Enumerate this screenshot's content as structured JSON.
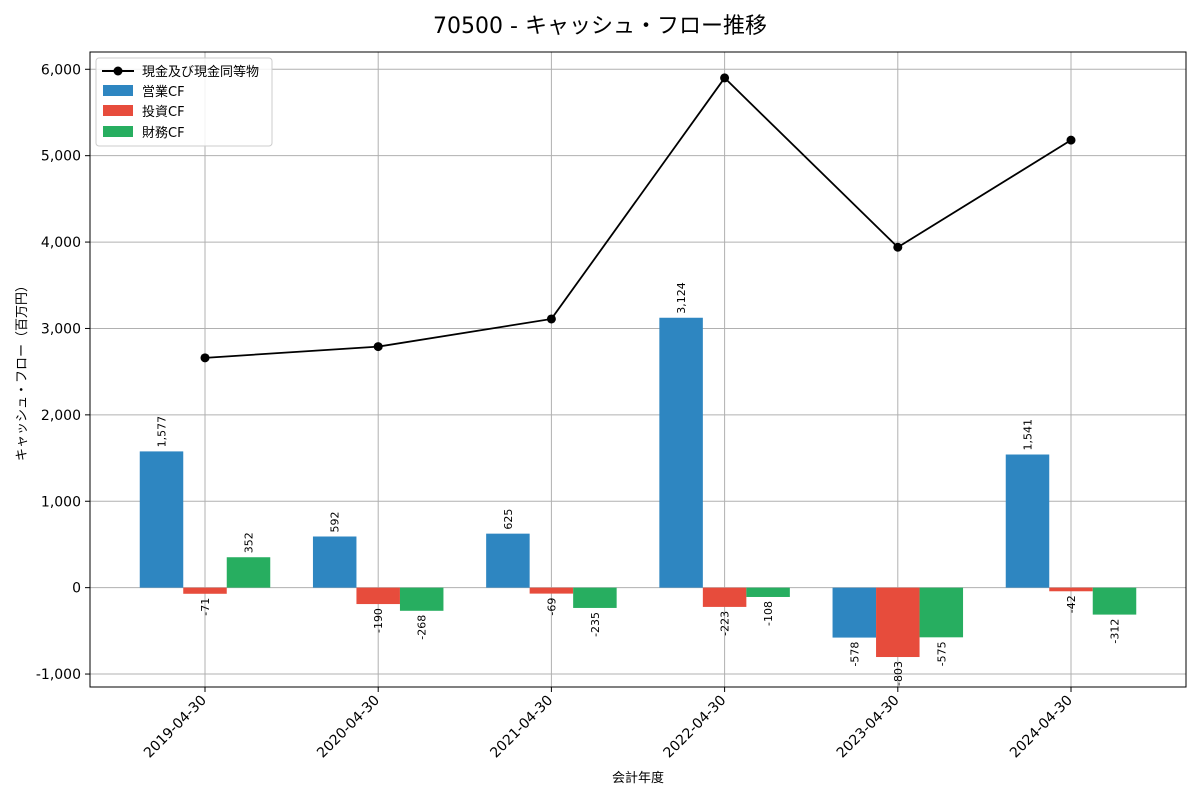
{
  "chart_data": {
    "type": "bar",
    "title": "70500 - キャッシュ・フロー推移",
    "xlabel": "会計年度",
    "ylabel": "キャッシュ・フロー（百万円）",
    "categories": [
      "2019-04-30",
      "2020-04-30",
      "2021-04-30",
      "2022-04-30",
      "2023-04-30",
      "2024-04-30"
    ],
    "ylim": [
      -1150,
      6200
    ],
    "yticks": [
      -1000,
      0,
      1000,
      2000,
      3000,
      4000,
      5000,
      6000
    ],
    "ytick_labels": [
      "-1,000",
      "0",
      "1,000",
      "2,000",
      "3,000",
      "4,000",
      "5,000",
      "6,000"
    ],
    "grid": true,
    "legend_position": "top-left",
    "series": [
      {
        "name": "営業CF",
        "kind": "bar",
        "color": "#2e86c1",
        "values": [
          1577,
          592,
          625,
          3124,
          -578,
          1541
        ],
        "labels": [
          "1,577",
          "592",
          "625",
          "3,124",
          "-578",
          "1,541"
        ]
      },
      {
        "name": "投資CF",
        "kind": "bar",
        "color": "#e74c3c",
        "values": [
          -71,
          -190,
          -69,
          -223,
          -803,
          -42
        ],
        "labels": [
          "-71",
          "-190",
          "-69",
          "-223",
          "-803",
          "-42"
        ]
      },
      {
        "name": "財務CF",
        "kind": "bar",
        "color": "#27ae60",
        "values": [
          352,
          -268,
          -235,
          -108,
          -575,
          -312
        ],
        "labels": [
          "352",
          "-268",
          "-235",
          "-108",
          "-575",
          "-312"
        ]
      }
    ],
    "line_series": {
      "name": "現金及び現金同等物",
      "kind": "line",
      "color": "#000000",
      "values": [
        2660,
        2790,
        3110,
        5900,
        3940,
        5180
      ]
    }
  }
}
